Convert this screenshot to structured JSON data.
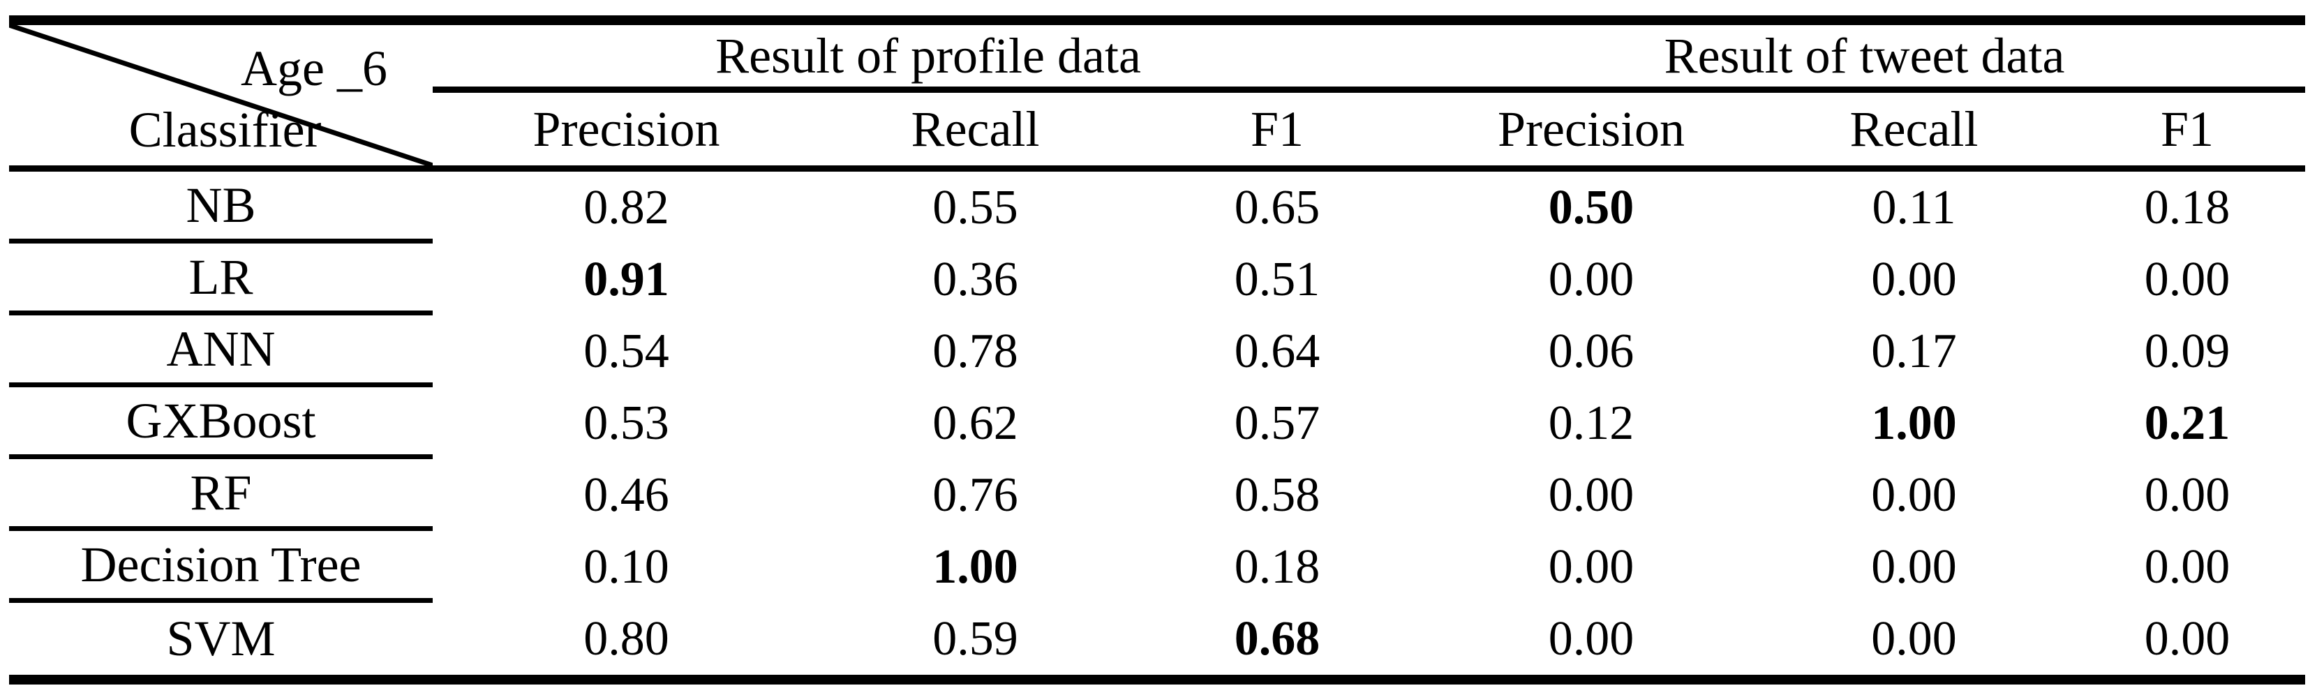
{
  "colors": {
    "text": "#000000",
    "rule": "#000000",
    "background": "#ffffff"
  },
  "table": {
    "corner": {
      "top_label": "Age _6",
      "bottom_label": "Classifier"
    },
    "column_groups": [
      {
        "label": "Result of profile data",
        "columns": [
          "Precision",
          "Recall",
          "F1"
        ]
      },
      {
        "label": "Result of tweet data",
        "columns": [
          "Precision",
          "Recall",
          "F1"
        ]
      }
    ],
    "sub_headers": [
      "Precision",
      "Recall",
      "F1",
      "Precision",
      "Recall",
      "F1"
    ],
    "rows": [
      {
        "classifier": "NB",
        "values": [
          "0.82",
          "0.55",
          "0.65",
          "0.50",
          "0.11",
          "0.18"
        ],
        "bold_indices": [
          3
        ]
      },
      {
        "classifier": "LR",
        "values": [
          "0.91",
          "0.36",
          "0.51",
          "0.00",
          "0.00",
          "0.00"
        ],
        "bold_indices": [
          0
        ]
      },
      {
        "classifier": "ANN",
        "values": [
          "0.54",
          "0.78",
          "0.64",
          "0.06",
          "0.17",
          "0.09"
        ],
        "bold_indices": []
      },
      {
        "classifier": "GXBoost",
        "values": [
          "0.53",
          "0.62",
          "0.57",
          "0.12",
          "1.00",
          "0.21"
        ],
        "bold_indices": [
          4,
          5
        ]
      },
      {
        "classifier": "RF",
        "values": [
          "0.46",
          "0.76",
          "0.58",
          "0.00",
          "0.00",
          "0.00"
        ],
        "bold_indices": []
      },
      {
        "classifier": "Decision Tree",
        "values": [
          "0.10",
          "1.00",
          "0.18",
          "0.00",
          "0.00",
          "0.00"
        ],
        "bold_indices": [
          1
        ]
      },
      {
        "classifier": "SVM",
        "values": [
          "0.80",
          "0.59",
          "0.68",
          "0.00",
          "0.00",
          "0.00"
        ],
        "bold_indices": [
          2
        ]
      }
    ]
  }
}
